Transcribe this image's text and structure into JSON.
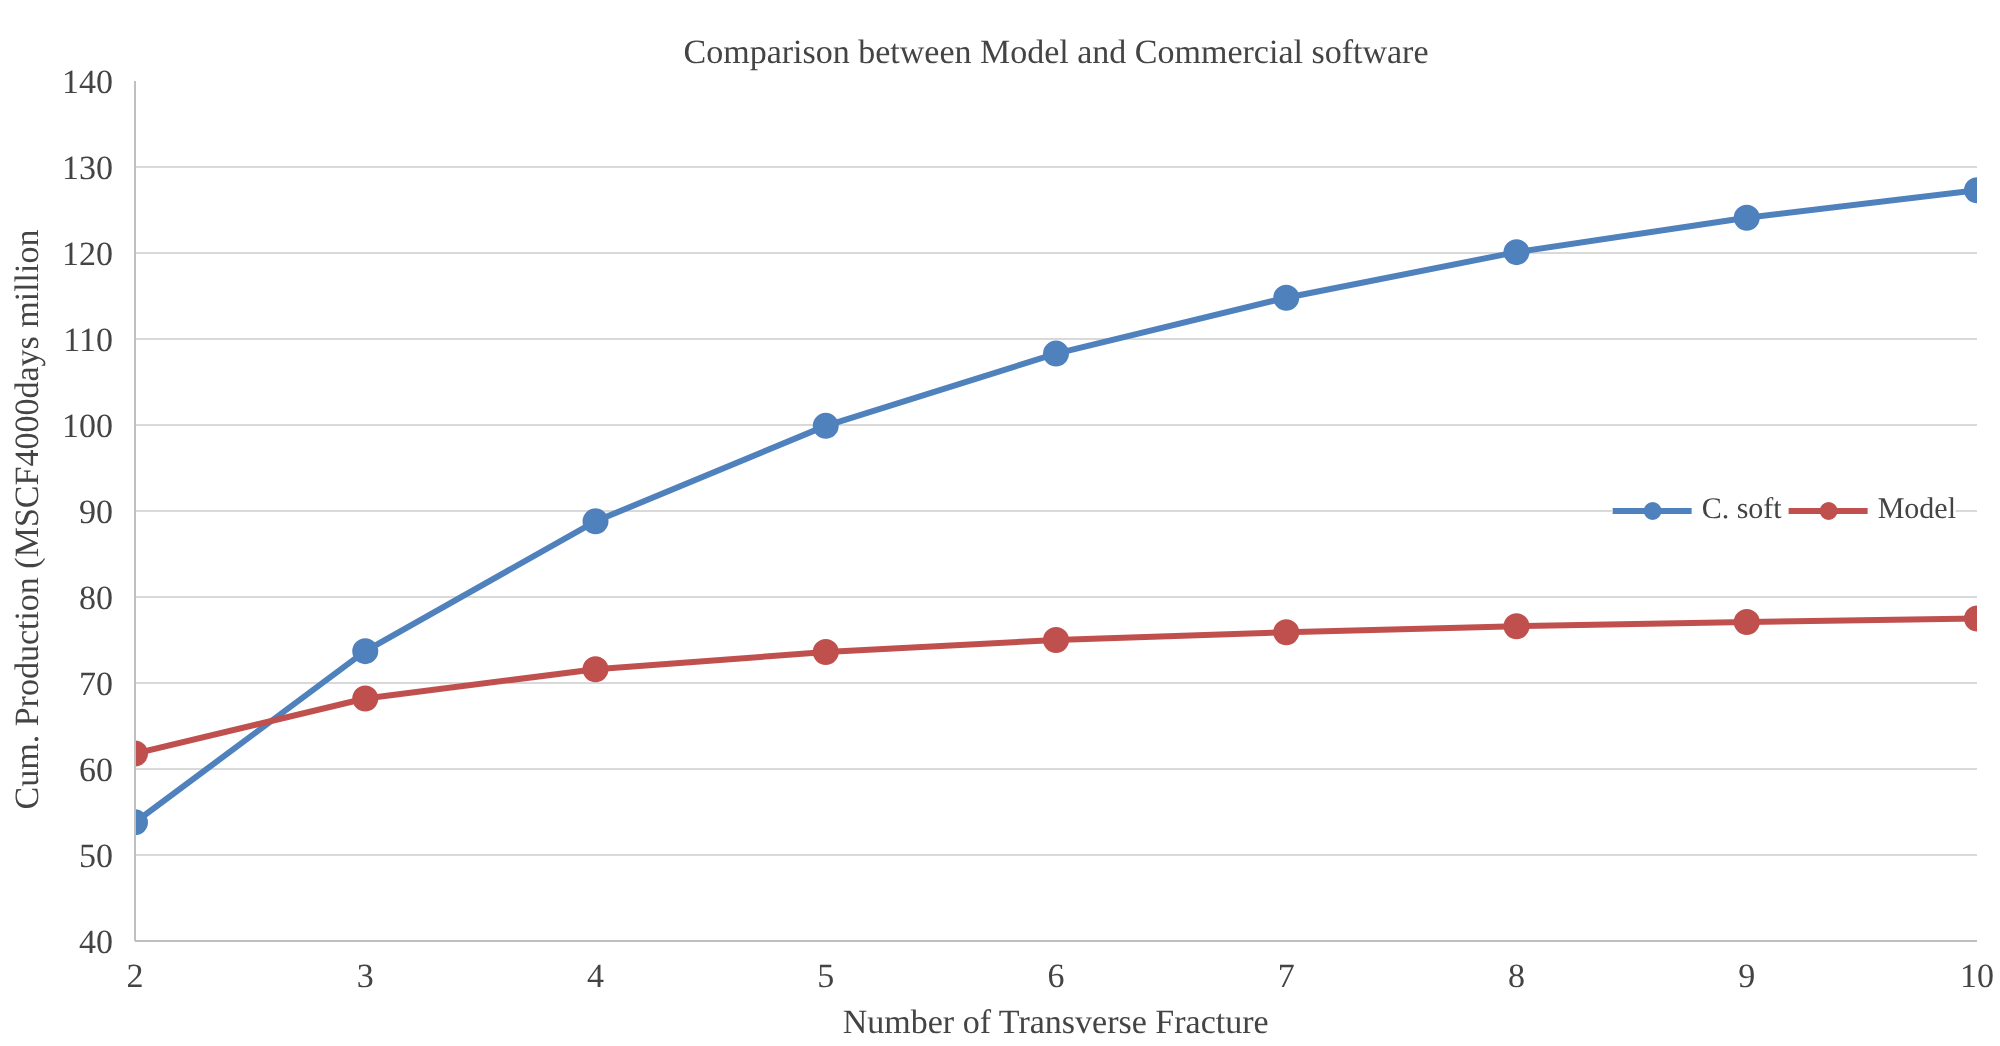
{
  "chart_data": {
    "type": "line",
    "title": "Comparison between Model and Commercial software",
    "xlabel": "Number of Transverse Fracture",
    "ylabel": "Cum. Production (MSCF4000days   million",
    "x": [
      2,
      3,
      4,
      5,
      6,
      7,
      8,
      9,
      10
    ],
    "series": [
      {
        "name": "C. soft",
        "color": "#4f81bd",
        "values": [
          53.8,
          73.7,
          88.8,
          99.9,
          108.3,
          114.8,
          120.1,
          124.1,
          127.3
        ]
      },
      {
        "name": "Model",
        "color": "#c0504d",
        "values": [
          61.8,
          68.2,
          71.6,
          73.6,
          75.0,
          75.9,
          76.6,
          77.1,
          77.5
        ]
      }
    ],
    "xlim": [
      2,
      10
    ],
    "xticks": [
      2,
      3,
      4,
      5,
      6,
      7,
      8,
      9,
      10
    ],
    "ylim": [
      40,
      140
    ],
    "yticks": [
      40,
      50,
      60,
      70,
      80,
      90,
      100,
      110,
      120,
      130,
      140
    ],
    "grid": "y",
    "legend": "right",
    "marker": "circle",
    "line_style": "solid"
  }
}
